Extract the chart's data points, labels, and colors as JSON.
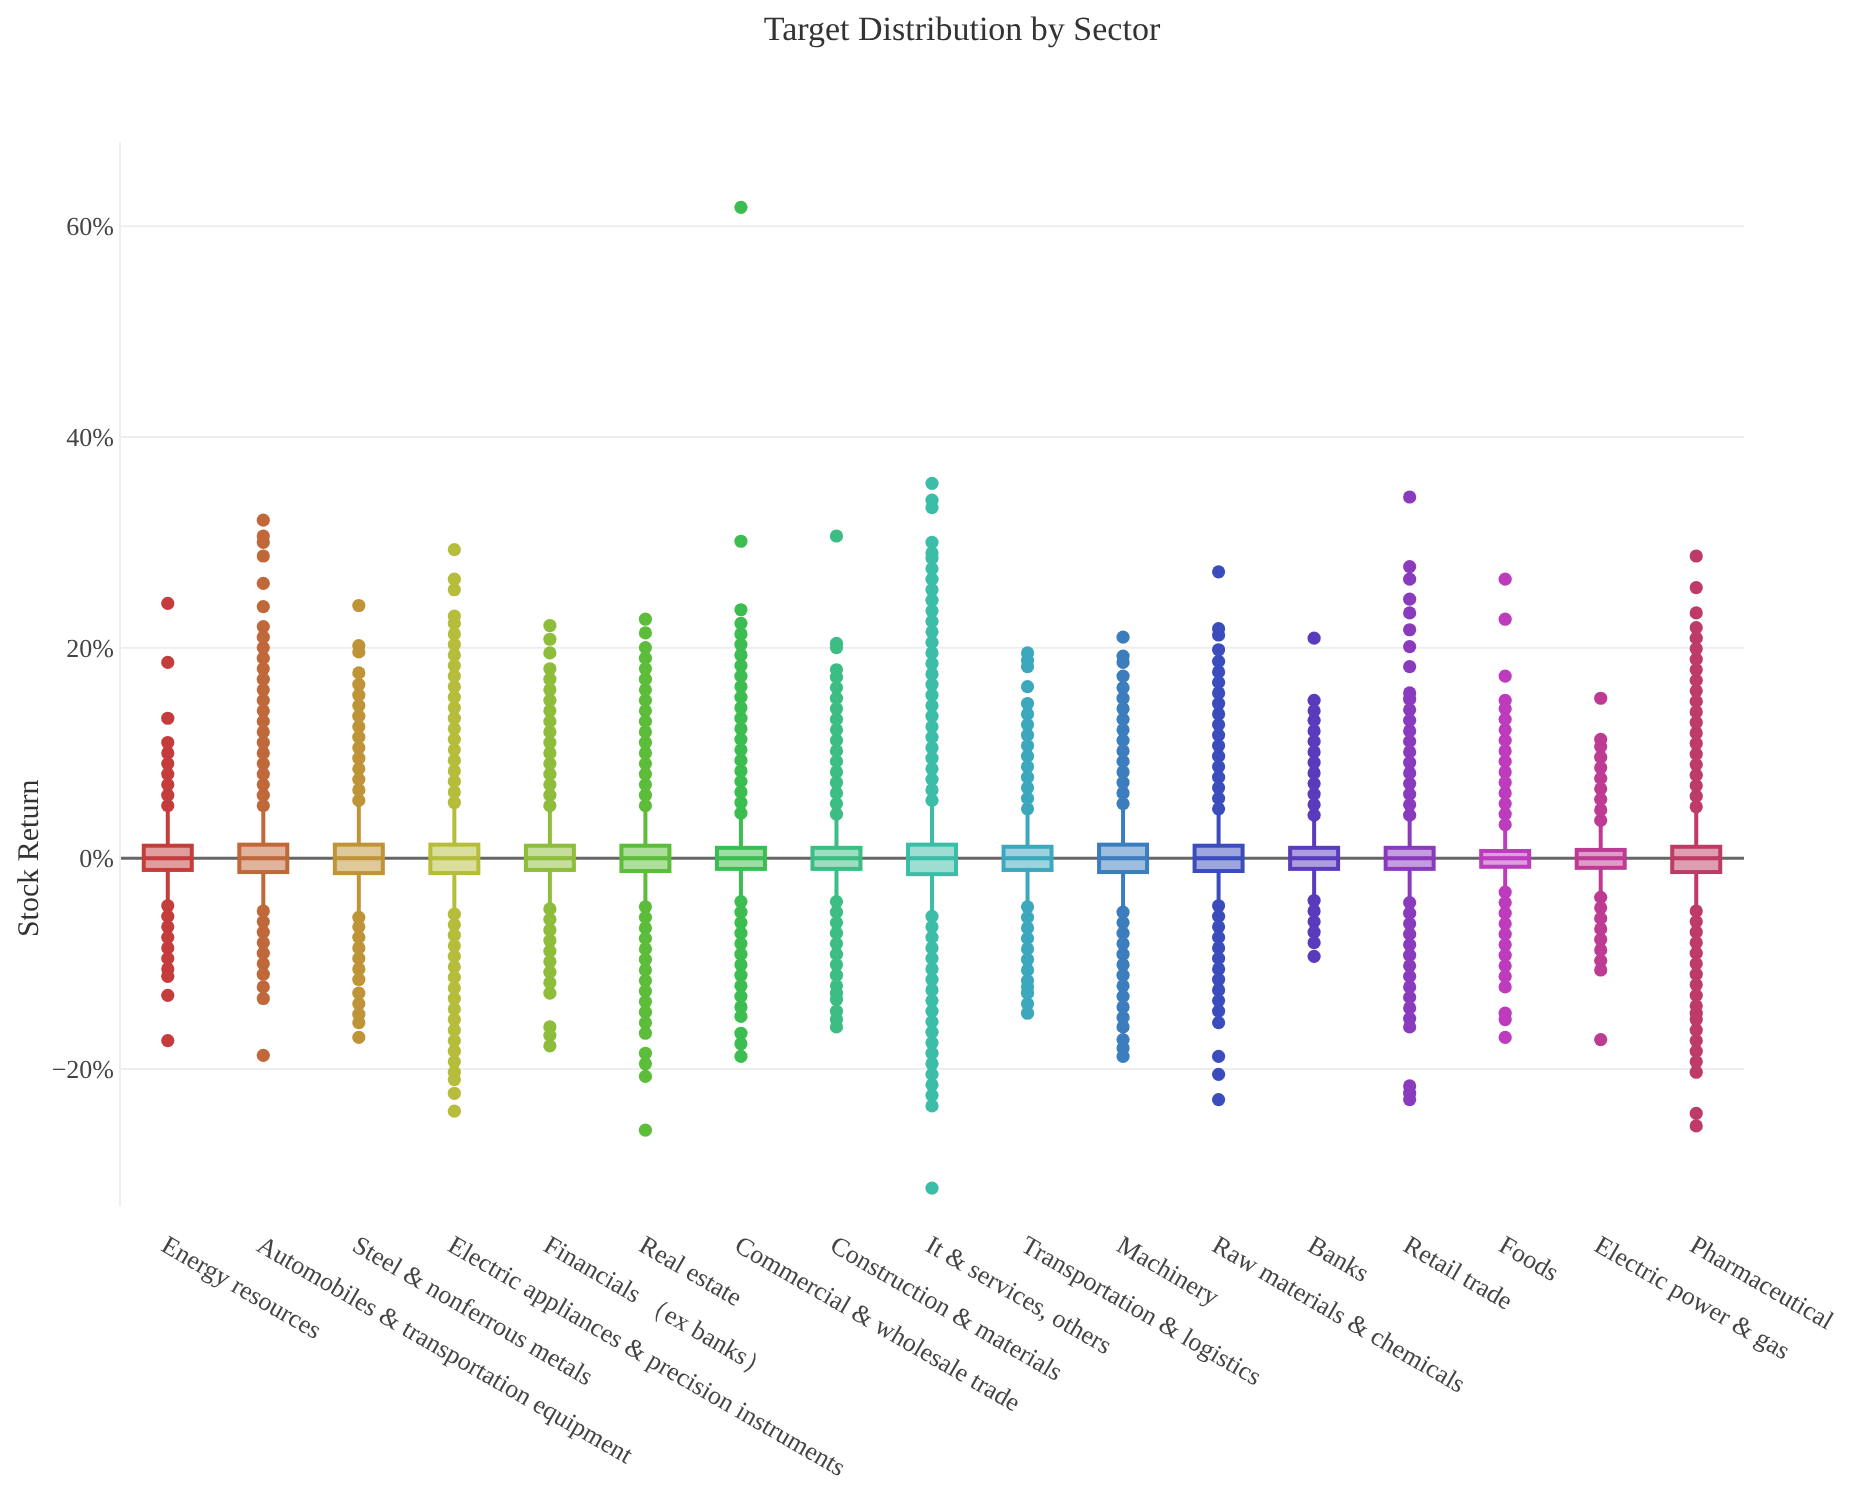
{
  "chart_data": {
    "type": "box",
    "title": "Target Distribution by Sector",
    "ylabel": "Stock Return",
    "categories": [
      "Energy resources",
      "Automobiles & transportation equipment",
      "Steel & nonferrous metals",
      "Electric appliances & precision instruments",
      "Financials （ex banks）",
      "Real estate",
      "Commercial & wholesale trade",
      "Construction & materials",
      "It & services, others",
      "Transportation & logistics",
      "Machinery",
      "Raw materials & chemicals",
      "Banks",
      "Retail trade",
      "Foods",
      "Electric power & gas",
      "Pharmaceutical"
    ],
    "colors": [
      "#c43c3c",
      "#c0683a",
      "#bf9438",
      "#b5bd3a",
      "#8dbd3a",
      "#5bbd3a",
      "#3bbd4f",
      "#3bbd83",
      "#3bbda7",
      "#3ba8bd",
      "#3b7dbd",
      "#3b4dbd",
      "#5a3bbd",
      "#8a3bbd",
      "#bd3bbd",
      "#bd3b92",
      "#bd3b64"
    ],
    "ylim": [
      -33,
      68
    ],
    "yticks": [
      {
        "value": -20,
        "label": "−20%"
      },
      {
        "value": 0,
        "label": "0%"
      },
      {
        "value": 20,
        "label": "20%"
      },
      {
        "value": 40,
        "label": "40%"
      },
      {
        "value": 60,
        "label": "60%"
      }
    ],
    "grid": "y",
    "boxes": [
      {
        "low": -4.1,
        "q1": -1.1,
        "median": 0,
        "q3": 1.2,
        "high": 4.4,
        "outliers": [
          5,
          6,
          7,
          8,
          9,
          10,
          11,
          13.3,
          18.6,
          24.2,
          -4.5,
          -5.5,
          -6.5,
          -7.5,
          -8.5,
          -9.5,
          -10.5,
          -11.2,
          -13,
          -17.3
        ]
      },
      {
        "low": -4.7,
        "q1": -1.3,
        "median": 0,
        "q3": 1.3,
        "high": 4.8,
        "outliers": [
          5,
          6,
          7,
          8,
          9,
          10,
          11,
          12,
          13,
          14,
          15,
          16,
          17,
          18,
          19,
          20,
          21,
          22,
          23.9,
          26.1,
          28.7,
          30,
          30.6,
          32.1,
          -5,
          -6,
          -7,
          -8,
          -9,
          -10,
          -11,
          -12.2,
          -13.3,
          -18.7
        ]
      },
      {
        "low": -5.2,
        "q1": -1.4,
        "median": 0,
        "q3": 1.3,
        "high": 5.1,
        "outliers": [
          5.5,
          6.5,
          7.5,
          8.5,
          9.5,
          10.5,
          11.5,
          12.5,
          13.5,
          14.5,
          15.5,
          16.5,
          17.6,
          19.6,
          20.2,
          24,
          -5.6,
          -6.5,
          -7.5,
          -8.5,
          -9.5,
          -10.5,
          -11.5,
          -12.8,
          -13.8,
          -14.8,
          -15.6,
          -17
        ]
      },
      {
        "low": -4.9,
        "q1": -1.4,
        "median": 0,
        "q3": 1.3,
        "high": 4.9,
        "outliers": [
          5.3,
          6.3,
          7.3,
          8.3,
          9.3,
          10.3,
          11.3,
          12.3,
          13.3,
          14.3,
          15.3,
          16.3,
          17.3,
          18.3,
          19.3,
          20.3,
          21.3,
          22.3,
          23,
          25.5,
          26.5,
          29.3,
          -5.3,
          -6.3,
          -7.3,
          -8.3,
          -9.3,
          -10.3,
          -11.3,
          -12.3,
          -13.3,
          -14.3,
          -15.3,
          -16.3,
          -17.3,
          -18.3,
          -19.3,
          -20.3,
          -21,
          -22.3,
          -24
        ]
      },
      {
        "low": -4.4,
        "q1": -1.1,
        "median": 0,
        "q3": 1.2,
        "high": 4.6,
        "outliers": [
          5,
          6,
          7,
          8,
          9,
          10,
          11,
          12,
          13,
          14,
          15,
          16,
          17,
          18,
          19.5,
          20.8,
          22.1,
          -4.8,
          -5.8,
          -6.8,
          -7.8,
          -8.8,
          -9.8,
          -10.8,
          -11.8,
          -12.8,
          -16,
          -16.8,
          -17.8
        ]
      },
      {
        "low": -4.2,
        "q1": -1.2,
        "median": 0,
        "q3": 1.2,
        "high": 4.5,
        "outliers": [
          5,
          6,
          7,
          8,
          9,
          10,
          11,
          12,
          13,
          14,
          15,
          16,
          17,
          18,
          19,
          20,
          21.4,
          22.7,
          -4.6,
          -5.6,
          -6.6,
          -7.6,
          -8.6,
          -9.6,
          -10.6,
          -11.6,
          -12.6,
          -13.6,
          -14.6,
          -15.6,
          -16.6,
          -18.5,
          -19.5,
          -20.7,
          -25.8
        ]
      },
      {
        "low": -3.7,
        "q1": -1,
        "median": 0,
        "q3": 1,
        "high": 3.9,
        "outliers": [
          4.3,
          5.3,
          6.3,
          7.3,
          8.3,
          9.3,
          10.3,
          11.3,
          12.3,
          13.3,
          14.3,
          15.3,
          16.3,
          17.3,
          18.3,
          19.3,
          20.3,
          21.3,
          22.3,
          23.6,
          30.1,
          61.8,
          -4.1,
          -5.1,
          -6.1,
          -7.1,
          -8.1,
          -9.1,
          -10.1,
          -11.1,
          -12.1,
          -13.1,
          -14.1,
          -15,
          -16.6,
          -17.6,
          -18.8
        ]
      },
      {
        "low": -3.7,
        "q1": -1,
        "median": 0,
        "q3": 1,
        "high": 3.8,
        "outliers": [
          4.2,
          5.2,
          6.2,
          7.2,
          8.2,
          9.2,
          10.2,
          11.2,
          12.2,
          13.2,
          14.2,
          15.2,
          16.2,
          17.2,
          17.9,
          20,
          20.4,
          30.6,
          -4.1,
          -5.1,
          -6.1,
          -7.1,
          -8.1,
          -9.1,
          -10.1,
          -11.1,
          -12.1,
          -12.8,
          -13.4,
          -14.5,
          -15.3,
          -16
        ]
      },
      {
        "low": -5.1,
        "q1": -1.5,
        "median": 0,
        "q3": 1.3,
        "high": 5.1,
        "outliers": [
          5.5,
          6.5,
          7.5,
          8.5,
          9.5,
          10.5,
          11.5,
          12.5,
          13.5,
          14.5,
          15.5,
          16.5,
          17.5,
          18.5,
          19.5,
          20.5,
          21.5,
          22.5,
          23.5,
          24.5,
          25.5,
          26.5,
          27.5,
          28.5,
          29,
          30,
          33.3,
          34,
          35.6,
          -5.5,
          -6.5,
          -7.5,
          -8.5,
          -9.5,
          -10.5,
          -11.5,
          -12.5,
          -13.5,
          -14.5,
          -15.5,
          -16.5,
          -17.5,
          -18.5,
          -19.5,
          -20.5,
          -21.5,
          -22.5,
          -23.5,
          -31.3
        ]
      },
      {
        "low": -4.2,
        "q1": -1.1,
        "median": 0,
        "q3": 1.1,
        "high": 4.3,
        "outliers": [
          4.7,
          5.7,
          6.7,
          7.7,
          8.7,
          9.7,
          10.7,
          11.7,
          12.7,
          13.7,
          14.7,
          16.3,
          18.2,
          18.8,
          19.5,
          -4.6,
          -5.6,
          -6.6,
          -7.6,
          -8.6,
          -9.6,
          -10.6,
          -11.6,
          -12.2,
          -12.8,
          -13.8,
          -14.7
        ]
      },
      {
        "low": -4.7,
        "q1": -1.3,
        "median": 0,
        "q3": 1.3,
        "high": 4.8,
        "outliers": [
          5.2,
          6.2,
          7.2,
          8.2,
          9.2,
          10.2,
          11.2,
          12.2,
          13.2,
          14.2,
          15.2,
          16.2,
          17.3,
          18.6,
          19.2,
          21,
          -5.1,
          -6.1,
          -7.1,
          -8.1,
          -9.1,
          -10.1,
          -11.1,
          -12.1,
          -13.1,
          -14.1,
          -15.1,
          -16,
          -17.2,
          -18,
          -18.8
        ]
      },
      {
        "low": -4.1,
        "q1": -1.2,
        "median": 0,
        "q3": 1.2,
        "high": 4.3,
        "outliers": [
          4.7,
          5.7,
          6.7,
          7.7,
          8.7,
          9.7,
          10.7,
          11.7,
          12.7,
          13.7,
          14.7,
          15.7,
          16.7,
          17.7,
          18.7,
          19.8,
          21.2,
          21.8,
          27.2,
          -4.5,
          -5.5,
          -6.5,
          -7.5,
          -8.5,
          -9.5,
          -10.5,
          -11.5,
          -12.5,
          -13.5,
          -14.5,
          -15.6,
          -18.8,
          -20.5,
          -22.9
        ]
      },
      {
        "low": -3.6,
        "q1": -1,
        "median": 0,
        "q3": 1,
        "high": 3.7,
        "outliers": [
          4.1,
          5.1,
          6.1,
          7.1,
          8.1,
          9.1,
          10.1,
          11.1,
          12.1,
          13.1,
          14,
          15,
          20.9,
          -4,
          -5,
          -6,
          -7,
          -8,
          -9.3
        ]
      },
      {
        "low": -3.8,
        "q1": -1,
        "median": 0,
        "q3": 1,
        "high": 3.7,
        "outliers": [
          4.1,
          5.1,
          6.1,
          7.1,
          8.1,
          9.1,
          10.1,
          11.1,
          12.1,
          13.1,
          14.1,
          15.1,
          15.7,
          18.2,
          20.1,
          21.7,
          23.3,
          24.6,
          26.5,
          27.7,
          34.3,
          -4.2,
          -5.2,
          -6.2,
          -7.2,
          -8.2,
          -9.2,
          -10.2,
          -11.2,
          -12.2,
          -13.2,
          -14.2,
          -15.2,
          -16,
          -21.6,
          -22.3,
          -22.9
        ]
      },
      {
        "low": -2.8,
        "q1": -0.8,
        "median": 0,
        "q3": 0.7,
        "high": 2.8,
        "outliers": [
          3.2,
          4.2,
          5.2,
          6.2,
          7.2,
          8.2,
          9.2,
          10.2,
          11.2,
          12.2,
          13.2,
          14.2,
          15,
          17.3,
          22.7,
          26.5,
          -3.2,
          -4.2,
          -5.2,
          -6.2,
          -7.2,
          -8.2,
          -9.2,
          -10.2,
          -11.2,
          -12.2,
          -14.7,
          -15.3,
          -17
        ]
      },
      {
        "low": -3.3,
        "q1": -0.9,
        "median": 0,
        "q3": 0.8,
        "high": 3.2,
        "outliers": [
          3.6,
          4.6,
          5.6,
          6.6,
          7.6,
          8.6,
          9.6,
          10.6,
          11.3,
          15.2,
          -3.7,
          -4.7,
          -5.7,
          -6.7,
          -7.7,
          -8.7,
          -9.7,
          -10.6,
          -17.2
        ]
      },
      {
        "low": -4.6,
        "q1": -1.3,
        "median": 0,
        "q3": 1.1,
        "high": 4.5,
        "outliers": [
          4.9,
          5.9,
          6.9,
          7.9,
          8.9,
          9.9,
          10.9,
          11.9,
          12.9,
          13.9,
          14.9,
          15.9,
          16.9,
          17.9,
          18.9,
          19.9,
          20.9,
          21.9,
          23.3,
          25.7,
          28.7,
          -5,
          -6,
          -7,
          -8,
          -9,
          -10,
          -11,
          -12,
          -13,
          -14,
          -14.7,
          -15.3,
          -16.3,
          -17.3,
          -18.3,
          -19.3,
          -20.3,
          -24.2,
          -25.4
        ]
      }
    ]
  }
}
